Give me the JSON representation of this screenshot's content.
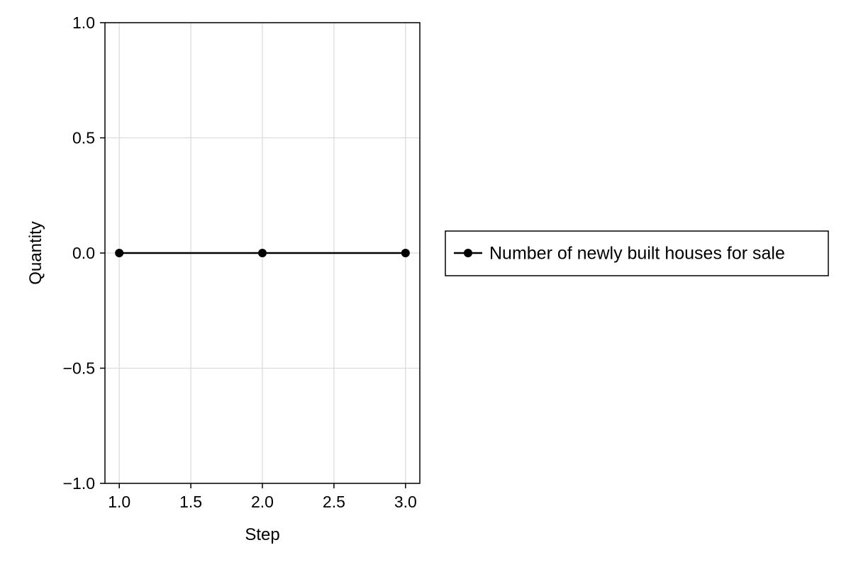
{
  "chart_data": {
    "type": "line",
    "title": "",
    "xlabel": "Step",
    "ylabel": "Quantity",
    "xlim": [
      0.9,
      3.1
    ],
    "ylim": [
      -1.0,
      1.0
    ],
    "x_ticks": [
      1.0,
      1.5,
      2.0,
      2.5,
      3.0
    ],
    "x_tick_labels": [
      "1.0",
      "1.5",
      "2.0",
      "2.5",
      "3.0"
    ],
    "y_ticks": [
      1.0,
      0.5,
      0.0,
      -0.5,
      -1.0
    ],
    "y_tick_labels": [
      "1.0",
      "0.5",
      "0.0",
      "−0.5",
      "−1.0"
    ],
    "grid": true,
    "legend_position": "right",
    "series": [
      {
        "name": "Number of newly built houses for sale",
        "color": "#000000",
        "marker": "circle",
        "x": [
          1,
          2,
          3
        ],
        "y": [
          0,
          0,
          0
        ]
      }
    ]
  }
}
